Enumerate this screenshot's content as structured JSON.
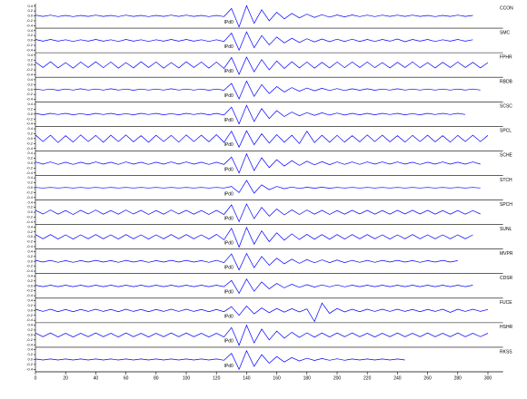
{
  "chart_data": {
    "type": "line",
    "x": [
      0,
      5,
      10,
      15,
      20,
      25,
      30,
      35,
      40,
      45,
      50,
      55,
      60,
      65,
      70,
      75,
      80,
      85,
      90,
      95,
      100,
      105,
      110,
      115,
      120,
      125,
      130,
      135,
      140,
      145,
      150,
      155,
      160,
      165,
      170,
      175,
      180,
      185,
      190,
      195,
      200,
      205,
      210,
      215,
      220,
      225,
      230,
      235,
      240,
      245,
      250,
      255,
      260,
      265,
      270,
      275,
      280,
      285,
      290,
      295,
      300
    ],
    "xlim": [
      0,
      310
    ],
    "xticks": [
      0,
      20,
      40,
      60,
      80,
      100,
      120,
      140,
      160,
      180,
      200,
      220,
      240,
      260,
      280,
      300
    ],
    "ylim": [
      -0.5,
      0.5
    ],
    "yticks": [
      -0.4,
      -0.2,
      {
        "value": 0,
        "label": "0.0"
      },
      0.2,
      0.4
    ],
    "series": [
      {
        "name": "CCON",
        "annotation": "IPd0",
        "color": "#0000ff",
        "values": [
          0.03,
          -0.02,
          0.03,
          -0.03,
          0.02,
          -0.03,
          0.02,
          -0.02,
          0.03,
          -0.02,
          0.02,
          -0.03,
          0.03,
          -0.02,
          0.02,
          -0.03,
          0.02,
          -0.02,
          0.03,
          -0.02,
          0.03,
          -0.02,
          0.02,
          -0.03,
          0.02,
          -0.03,
          0.3,
          -0.45,
          0.42,
          -0.3,
          0.25,
          -0.2,
          0.15,
          -0.12,
          0.1,
          -0.08,
          0.07,
          -0.06,
          0.05,
          -0.05,
          0.04,
          -0.04,
          0.04,
          -0.03,
          0.03,
          -0.03,
          0.03,
          -0.02,
          0.03,
          -0.02,
          0.03,
          -0.02,
          0.02,
          -0.03,
          0.02,
          -0.02,
          0.03,
          -0.02,
          0.02,
          null,
          null
        ]
      },
      {
        "name": "SMC",
        "annotation": "IPd0",
        "color": "#0000ff",
        "values": [
          0.04,
          -0.03,
          0.04,
          -0.03,
          0.03,
          -0.04,
          0.03,
          -0.03,
          0.04,
          -0.03,
          0.03,
          -0.04,
          0.04,
          -0.03,
          0.03,
          -0.04,
          0.03,
          -0.03,
          0.04,
          -0.03,
          0.04,
          -0.03,
          0.03,
          -0.04,
          0.03,
          -0.04,
          0.3,
          -0.4,
          0.35,
          -0.3,
          0.2,
          -0.18,
          0.14,
          -0.1,
          0.09,
          -0.08,
          0.07,
          -0.06,
          0.06,
          -0.05,
          0.05,
          -0.04,
          0.05,
          -0.04,
          0.04,
          -0.04,
          0.04,
          -0.03,
          0.06,
          -0.05,
          0.04,
          -0.03,
          0.04,
          -0.04,
          0.03,
          -0.03,
          0.04,
          -0.03,
          0.03,
          null,
          null
        ]
      },
      {
        "name": "FPHR",
        "annotation": "IPd0",
        "color": "#0000ff",
        "values": [
          0.12,
          -0.1,
          0.13,
          -0.12,
          0.1,
          -0.13,
          0.12,
          -0.1,
          0.13,
          -0.11,
          0.12,
          -0.13,
          0.1,
          -0.12,
          0.13,
          -0.1,
          0.12,
          -0.13,
          0.1,
          -0.12,
          0.13,
          -0.1,
          0.12,
          -0.13,
          0.12,
          -0.14,
          0.3,
          -0.38,
          0.32,
          -0.28,
          0.22,
          -0.2,
          0.16,
          -0.14,
          0.13,
          -0.12,
          0.12,
          -0.13,
          0.11,
          -0.12,
          0.12,
          -0.11,
          0.12,
          -0.1,
          0.12,
          -0.11,
          0.1,
          -0.12,
          0.11,
          -0.1,
          0.12,
          -0.11,
          0.1,
          -0.12,
          0.11,
          -0.1,
          0.12,
          -0.1,
          0.11,
          -0.12,
          0.1
        ]
      },
      {
        "name": "RBDB",
        "annotation": "IPd0",
        "color": "#0000ff",
        "values": [
          0.02,
          -0.02,
          0.02,
          -0.03,
          0.02,
          -0.02,
          0.03,
          -0.02,
          0.02,
          -0.02,
          0.03,
          -0.02,
          0.02,
          -0.03,
          0.02,
          -0.02,
          0.02,
          -0.02,
          0.03,
          -0.02,
          0.02,
          -0.02,
          0.02,
          -0.03,
          0.02,
          -0.03,
          0.25,
          -0.38,
          0.35,
          -0.28,
          0.2,
          -0.16,
          0.12,
          -0.1,
          0.08,
          -0.07,
          0.06,
          -0.05,
          0.05,
          -0.04,
          0.04,
          -0.04,
          0.03,
          -0.03,
          0.03,
          -0.03,
          0.02,
          -0.02,
          0.03,
          -0.02,
          0.02,
          -0.02,
          0.02,
          -0.02,
          0.02,
          -0.02,
          0.02,
          -0.02,
          0.02,
          -0.02,
          null
        ]
      },
      {
        "name": "SCSC",
        "annotation": "IPd0",
        "color": "#0000ff",
        "values": [
          0.03,
          -0.03,
          0.03,
          -0.02,
          0.03,
          -0.03,
          0.02,
          -0.03,
          0.03,
          -0.02,
          0.03,
          -0.03,
          0.02,
          -0.03,
          0.03,
          -0.02,
          0.03,
          -0.03,
          0.02,
          -0.03,
          0.03,
          -0.02,
          0.03,
          -0.03,
          0.03,
          -0.04,
          0.28,
          -0.4,
          0.36,
          -0.3,
          0.22,
          -0.18,
          0.14,
          -0.1,
          0.08,
          -0.07,
          0.06,
          -0.05,
          0.05,
          -0.04,
          0.04,
          -0.04,
          0.03,
          -0.03,
          0.03,
          -0.03,
          0.03,
          -0.02,
          0.03,
          -0.03,
          0.02,
          -0.03,
          0.03,
          -0.02,
          0.03,
          -0.02,
          0.03,
          -0.02,
          null,
          null,
          null
        ]
      },
      {
        "name": "SPCL",
        "annotation": "IPd0",
        "color": "#0000ff",
        "values": [
          0.15,
          -0.12,
          0.14,
          -0.16,
          0.12,
          -0.14,
          0.15,
          -0.12,
          0.13,
          -0.15,
          0.14,
          -0.12,
          0.15,
          -0.13,
          0.12,
          -0.15,
          0.14,
          -0.12,
          0.13,
          -0.14,
          0.15,
          -0.12,
          0.14,
          -0.13,
          0.16,
          -0.15,
          0.3,
          -0.35,
          0.32,
          -0.25,
          0.2,
          -0.18,
          0.16,
          -0.15,
          0.14,
          -0.2,
          0.3,
          -0.16,
          0.14,
          -0.15,
          0.13,
          -0.14,
          0.12,
          -0.13,
          0.15,
          -0.12,
          0.14,
          -0.13,
          0.12,
          -0.14,
          0.13,
          -0.12,
          0.14,
          -0.13,
          0.12,
          -0.14,
          0.13,
          -0.12,
          0.14,
          -0.12,
          0.13
        ]
      },
      {
        "name": "SCHE",
        "annotation": "IPd0",
        "color": "#0000ff",
        "values": [
          0.05,
          -0.04,
          0.05,
          -0.05,
          0.04,
          -0.05,
          0.04,
          -0.04,
          0.05,
          -0.04,
          0.04,
          -0.05,
          0.05,
          -0.04,
          0.04,
          -0.05,
          0.04,
          -0.04,
          0.05,
          -0.04,
          0.05,
          -0.04,
          0.04,
          -0.05,
          0.04,
          -0.05,
          0.25,
          -0.4,
          0.38,
          -0.3,
          0.22,
          -0.18,
          0.14,
          -0.12,
          0.1,
          -0.09,
          0.08,
          -0.07,
          0.06,
          -0.06,
          0.05,
          -0.05,
          0.05,
          -0.05,
          0.05,
          -0.04,
          0.05,
          -0.04,
          0.05,
          -0.04,
          0.04,
          -0.05,
          0.04,
          -0.04,
          0.05,
          -0.04,
          0.04,
          -0.04,
          0.05,
          -0.04,
          null
        ]
      },
      {
        "name": "STCH",
        "annotation": "IPd0",
        "color": "#0000ff",
        "values": [
          0.01,
          -0.01,
          0.01,
          -0.01,
          0.01,
          -0.01,
          0.01,
          -0.01,
          0.01,
          -0.01,
          0.01,
          -0.01,
          0.01,
          -0.01,
          0.01,
          -0.01,
          0.01,
          -0.01,
          0.01,
          -0.01,
          0.01,
          -0.01,
          0.01,
          -0.01,
          0.01,
          -0.01,
          0.05,
          -0.2,
          0.3,
          -0.22,
          0.12,
          -0.08,
          0.05,
          -0.04,
          0.03,
          -0.03,
          0.02,
          -0.02,
          0.02,
          -0.02,
          0.01,
          -0.01,
          0.01,
          -0.01,
          0.01,
          -0.01,
          0.01,
          -0.01,
          0.01,
          -0.01,
          0.01,
          -0.01,
          0.01,
          -0.01,
          0.01,
          -0.01,
          0.01,
          -0.01,
          0.01,
          -0.01,
          null
        ]
      },
      {
        "name": "SPCH",
        "annotation": "IPd0",
        "color": "#0000ff",
        "values": [
          0.08,
          -0.07,
          0.09,
          -0.08,
          0.07,
          -0.09,
          0.08,
          -0.07,
          0.09,
          -0.08,
          0.07,
          -0.08,
          0.09,
          -0.07,
          0.08,
          -0.09,
          0.07,
          -0.08,
          0.09,
          -0.07,
          0.08,
          -0.08,
          0.07,
          -0.09,
          0.08,
          -0.09,
          0.3,
          -0.38,
          0.34,
          -0.26,
          0.2,
          -0.16,
          0.13,
          -0.11,
          0.1,
          -0.09,
          0.09,
          -0.08,
          0.08,
          -0.09,
          0.07,
          -0.08,
          0.08,
          -0.07,
          0.08,
          -0.08,
          0.07,
          -0.08,
          0.08,
          -0.07,
          0.08,
          -0.07,
          0.08,
          -0.08,
          0.07,
          -0.08,
          0.07,
          -0.08,
          0.07,
          -0.07,
          null
        ]
      },
      {
        "name": "SUNL",
        "annotation": "IPd0",
        "color": "#0000ff",
        "values": [
          0.09,
          -0.08,
          0.09,
          -0.09,
          0.08,
          -0.09,
          0.08,
          -0.08,
          0.09,
          -0.08,
          0.08,
          -0.09,
          0.09,
          -0.08,
          0.08,
          -0.09,
          0.08,
          -0.08,
          0.09,
          -0.08,
          0.09,
          -0.08,
          0.08,
          -0.09,
          0.1,
          -0.12,
          0.35,
          -0.42,
          0.38,
          -0.3,
          0.24,
          -0.2,
          0.16,
          -0.14,
          0.12,
          -0.11,
          0.1,
          -0.1,
          0.09,
          -0.1,
          0.09,
          -0.09,
          0.09,
          -0.08,
          0.09,
          -0.08,
          0.08,
          -0.09,
          0.08,
          -0.08,
          0.09,
          -0.08,
          0.08,
          -0.08,
          0.08,
          -0.08,
          0.08,
          -0.08,
          0.08,
          null,
          null
        ]
      },
      {
        "name": "MVPR",
        "annotation": "IPd0",
        "color": "#0000ff",
        "values": [
          0.04,
          -0.03,
          0.04,
          -0.04,
          0.03,
          -0.04,
          0.03,
          -0.03,
          0.04,
          -0.03,
          0.03,
          -0.04,
          0.04,
          -0.03,
          0.03,
          -0.04,
          0.03,
          -0.03,
          0.04,
          -0.03,
          0.04,
          -0.03,
          0.03,
          -0.04,
          0.04,
          -0.05,
          0.3,
          -0.35,
          0.32,
          -0.26,
          0.2,
          -0.16,
          0.13,
          -0.1,
          0.09,
          -0.08,
          0.07,
          -0.06,
          0.06,
          -0.05,
          0.05,
          -0.05,
          0.04,
          -0.04,
          0.04,
          -0.04,
          0.04,
          -0.03,
          0.04,
          -0.03,
          0.03,
          -0.04,
          0.03,
          -0.03,
          0.04,
          -0.03,
          0.03,
          null,
          null,
          null,
          null
        ]
      },
      {
        "name": "CDSR",
        "annotation": "IPd0",
        "color": "#0000ff",
        "values": [
          0.03,
          -0.03,
          0.03,
          -0.03,
          0.03,
          -0.03,
          0.03,
          -0.03,
          0.03,
          -0.03,
          0.03,
          -0.03,
          0.03,
          -0.03,
          0.03,
          -0.03,
          0.03,
          -0.03,
          0.03,
          -0.03,
          0.03,
          -0.03,
          0.03,
          -0.03,
          0.03,
          -0.03,
          0.22,
          -0.3,
          0.28,
          -0.22,
          0.16,
          -0.12,
          0.1,
          -0.08,
          0.07,
          -0.06,
          0.05,
          -0.05,
          0.04,
          -0.04,
          0.04,
          -0.04,
          0.03,
          -0.03,
          0.03,
          -0.03,
          0.03,
          -0.03,
          0.03,
          -0.03,
          0.03,
          -0.03,
          0.03,
          -0.03,
          0.03,
          -0.03,
          0.03,
          -0.03,
          0.03,
          null,
          null
        ]
      },
      {
        "name": "FUCE",
        "annotation": "IPd0",
        "color": "#0000ff",
        "values": [
          0.05,
          -0.04,
          0.05,
          -0.05,
          0.04,
          -0.05,
          0.04,
          -0.04,
          0.05,
          -0.04,
          0.04,
          -0.05,
          0.05,
          -0.04,
          0.04,
          -0.05,
          0.04,
          -0.04,
          0.05,
          -0.04,
          0.05,
          -0.04,
          0.04,
          -0.05,
          0.04,
          -0.05,
          0.15,
          -0.2,
          0.18,
          -0.14,
          0.1,
          -0.09,
          0.08,
          -0.07,
          0.07,
          -0.06,
          0.06,
          -0.45,
          0.3,
          -0.12,
          0.08,
          -0.06,
          0.05,
          -0.05,
          0.05,
          -0.04,
          0.05,
          -0.04,
          0.05,
          -0.04,
          0.04,
          -0.05,
          0.04,
          -0.04,
          0.05,
          -0.08,
          0.05,
          -0.04,
          0.05,
          -0.04,
          0.04
        ]
      },
      {
        "name": "HSHR",
        "annotation": "IPd0",
        "color": "#0000ff",
        "values": [
          0.08,
          -0.07,
          0.08,
          -0.08,
          0.07,
          -0.08,
          0.07,
          -0.07,
          0.08,
          -0.07,
          0.07,
          -0.08,
          0.08,
          -0.07,
          0.07,
          -0.08,
          0.07,
          -0.07,
          0.08,
          -0.07,
          0.08,
          -0.07,
          0.07,
          -0.08,
          0.07,
          -0.08,
          0.3,
          -0.42,
          0.4,
          -0.32,
          0.24,
          -0.2,
          0.16,
          -0.13,
          0.11,
          -0.1,
          0.09,
          -0.09,
          0.08,
          -0.08,
          0.08,
          -0.07,
          0.08,
          -0.07,
          0.07,
          -0.08,
          0.07,
          -0.07,
          0.08,
          -0.07,
          0.07,
          -0.07,
          0.08,
          -0.07,
          0.07,
          -0.07,
          0.08,
          -0.07,
          0.07,
          -0.07,
          0.07
        ]
      },
      {
        "name": "RKSS",
        "annotation": "IPd0",
        "color": "#0000ff",
        "values": [
          0.02,
          -0.02,
          0.02,
          -0.02,
          0.02,
          -0.02,
          0.02,
          -0.02,
          0.02,
          -0.02,
          0.02,
          -0.02,
          0.02,
          -0.02,
          0.02,
          -0.02,
          0.02,
          -0.02,
          0.02,
          -0.02,
          0.02,
          -0.02,
          0.02,
          -0.02,
          0.02,
          -0.03,
          0.25,
          -0.4,
          0.36,
          -0.28,
          0.2,
          -0.15,
          0.12,
          -0.1,
          0.08,
          -0.06,
          0.05,
          -0.04,
          0.04,
          -0.03,
          0.03,
          -0.03,
          0.02,
          -0.02,
          0.02,
          -0.02,
          0.02,
          -0.02,
          0.02,
          -0.02,
          null,
          null,
          null,
          null,
          null,
          null,
          null,
          null,
          null,
          null,
          null
        ]
      }
    ]
  }
}
